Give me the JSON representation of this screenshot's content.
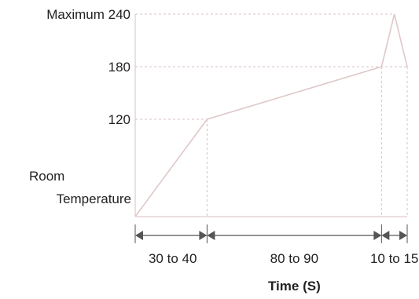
{
  "chart_data": {
    "type": "line",
    "y_labels": [
      {
        "value": 240,
        "text": "Maximum 240"
      },
      {
        "value": 180,
        "text": "180"
      },
      {
        "value": 120,
        "text": "120"
      }
    ],
    "y_start_label": [
      "Room",
      "Temperature"
    ],
    "phases": [
      {
        "label": "30 to 40",
        "duration": 35,
        "end_temp": 120
      },
      {
        "label": "80 to 90",
        "duration": 85,
        "end_temp": 180
      },
      {
        "label": "10 to 15",
        "duration": 12.5,
        "peak_temp": 240,
        "end_temp": 180
      }
    ],
    "xlabel": "Time (S)",
    "colors": {
      "curve": "#e0c8c8",
      "grid": "#d8c0c0",
      "dimension": "#555555",
      "text": "#222222"
    }
  }
}
